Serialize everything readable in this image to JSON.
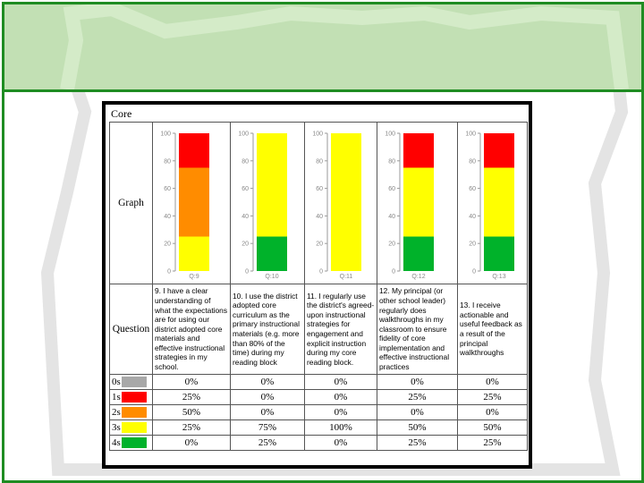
{
  "core_title": "Core",
  "rows": {
    "graph": "Graph",
    "question": "Question"
  },
  "score_levels": [
    {
      "label": "0s",
      "color": "#a8a8a8"
    },
    {
      "label": "1s",
      "color": "#ff0000"
    },
    {
      "label": "2s",
      "color": "#ff8c00"
    },
    {
      "label": "3s",
      "color": "#ffff00"
    },
    {
      "label": "4s",
      "color": "#00b22a"
    }
  ],
  "questions": [
    {
      "id": "Q:9",
      "text": "9. I have a clear understanding of what the expectations are for using our district adopted core materials and effective instructional strategies in my school.",
      "pct": [
        "0%",
        "25%",
        "50%",
        "25%",
        "0%"
      ]
    },
    {
      "id": "Q:10",
      "text": "10. I use the district adopted core curriculum as the primary instructional materials (e.g. more than 80% of the time) during my reading block",
      "pct": [
        "0%",
        "0%",
        "0%",
        "75%",
        "25%"
      ]
    },
    {
      "id": "Q:11",
      "text": "11. I regularly use the district's agreed-upon instructional strategies for engagement and explicit instruction during my core reading block.",
      "pct": [
        "0%",
        "0%",
        "0%",
        "100%",
        "0%"
      ]
    },
    {
      "id": "Q:12",
      "text": "12. My principal (or other school leader) regularly does walkthroughs in my classroom to ensure fidelity of core implementation and effective instructional practices",
      "pct": [
        "0%",
        "25%",
        "0%",
        "50%",
        "25%"
      ]
    },
    {
      "id": "Q:13",
      "text": "13. I receive actionable and useful feedback as a result of the principal walkthroughs",
      "pct": [
        "0%",
        "25%",
        "0%",
        "50%",
        "25%"
      ]
    }
  ],
  "chart_data": {
    "type": "bar",
    "stacked": true,
    "categories": [
      "Q:9",
      "Q:10",
      "Q:11",
      "Q:12",
      "Q:13"
    ],
    "ylim": [
      0,
      100
    ],
    "yticks": [
      0,
      20,
      40,
      60,
      80,
      100
    ],
    "series": [
      {
        "name": "0s",
        "color": "#a8a8a8",
        "values": [
          0,
          0,
          0,
          0,
          0
        ]
      },
      {
        "name": "4s",
        "color": "#00b22a",
        "values": [
          0,
          25,
          0,
          25,
          25
        ]
      },
      {
        "name": "3s",
        "color": "#ffff00",
        "values": [
          25,
          75,
          100,
          50,
          50
        ]
      },
      {
        "name": "2s",
        "color": "#ff8c00",
        "values": [
          50,
          0,
          0,
          0,
          0
        ]
      },
      {
        "name": "1s",
        "color": "#ff0000",
        "values": [
          25,
          0,
          0,
          25,
          25
        ]
      }
    ]
  }
}
